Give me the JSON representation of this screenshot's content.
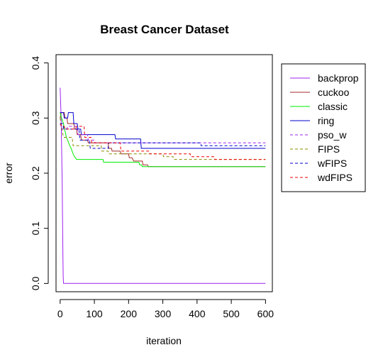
{
  "chart_data": {
    "type": "line",
    "title": "Breast Cancer Dataset",
    "xlabel": "iteration",
    "ylabel": "error",
    "xlim": [
      -12,
      620
    ],
    "ylim": [
      -0.015,
      0.415
    ],
    "xticks": [
      0,
      100,
      200,
      300,
      400,
      500,
      600
    ],
    "yticks": [
      0.0,
      0.1,
      0.2,
      0.3,
      0.4
    ],
    "xtick_labels": [
      "0",
      "100",
      "200",
      "300",
      "400",
      "500",
      "600"
    ],
    "ytick_labels": [
      "0.0",
      "0.1",
      "0.2",
      "0.3",
      "0.4"
    ],
    "legend_position": "right",
    "grid": false,
    "series": [
      {
        "name": "backprop",
        "color": "#a020f0",
        "dash": "solid",
        "points": [
          [
            0,
            0.355
          ],
          [
            3,
            0.3
          ],
          [
            6,
            0.18
          ],
          [
            8,
            0.05
          ],
          [
            9,
            0.012
          ],
          [
            10,
            0.0
          ],
          [
            600,
            0.0
          ]
        ]
      },
      {
        "name": "cuckoo",
        "color": "#a52a2a",
        "dash": "solid",
        "points": [
          [
            0,
            0.3
          ],
          [
            3,
            0.31
          ],
          [
            12,
            0.31
          ],
          [
            14,
            0.3
          ],
          [
            20,
            0.3
          ],
          [
            22,
            0.29
          ],
          [
            40,
            0.29
          ],
          [
            42,
            0.28
          ],
          [
            48,
            0.28
          ],
          [
            50,
            0.27
          ],
          [
            60,
            0.27
          ],
          [
            62,
            0.26
          ],
          [
            80,
            0.26
          ],
          [
            82,
            0.255
          ],
          [
            140,
            0.255
          ],
          [
            142,
            0.245
          ],
          [
            150,
            0.245
          ],
          [
            152,
            0.24
          ],
          [
            175,
            0.24
          ],
          [
            178,
            0.235
          ],
          [
            200,
            0.235
          ],
          [
            202,
            0.228
          ],
          [
            210,
            0.228
          ],
          [
            215,
            0.222
          ],
          [
            240,
            0.222
          ],
          [
            242,
            0.215
          ],
          [
            255,
            0.215
          ],
          [
            258,
            0.212
          ],
          [
            600,
            0.212
          ]
        ]
      },
      {
        "name": "classic",
        "color": "#00ee00",
        "dash": "solid",
        "points": [
          [
            0,
            0.31
          ],
          [
            4,
            0.3
          ],
          [
            10,
            0.29
          ],
          [
            12,
            0.28
          ],
          [
            15,
            0.275
          ],
          [
            18,
            0.265
          ],
          [
            22,
            0.26
          ],
          [
            25,
            0.255
          ],
          [
            28,
            0.25
          ],
          [
            32,
            0.245
          ],
          [
            35,
            0.24
          ],
          [
            38,
            0.235
          ],
          [
            42,
            0.23
          ],
          [
            48,
            0.225
          ],
          [
            125,
            0.225
          ],
          [
            127,
            0.22
          ],
          [
            230,
            0.22
          ],
          [
            232,
            0.215
          ],
          [
            238,
            0.215
          ],
          [
            240,
            0.212
          ],
          [
            600,
            0.212
          ]
        ]
      },
      {
        "name": "ring",
        "color": "#0000cd",
        "dash": "solid",
        "points": [
          [
            0,
            0.31
          ],
          [
            10,
            0.31
          ],
          [
            12,
            0.3
          ],
          [
            22,
            0.3
          ],
          [
            24,
            0.31
          ],
          [
            38,
            0.31
          ],
          [
            40,
            0.29
          ],
          [
            50,
            0.29
          ],
          [
            52,
            0.28
          ],
          [
            60,
            0.28
          ],
          [
            62,
            0.27
          ],
          [
            80,
            0.27
          ],
          [
            82,
            0.27
          ],
          [
            160,
            0.27
          ],
          [
            162,
            0.262
          ],
          [
            235,
            0.262
          ],
          [
            237,
            0.245
          ],
          [
            600,
            0.245
          ]
        ]
      },
      {
        "name": "pso_w",
        "color": "#a020f0",
        "dash": "dashed",
        "points": [
          [
            0,
            0.29
          ],
          [
            6,
            0.28
          ],
          [
            20,
            0.28
          ],
          [
            22,
            0.285
          ],
          [
            50,
            0.285
          ],
          [
            52,
            0.27
          ],
          [
            80,
            0.27
          ],
          [
            82,
            0.26
          ],
          [
            100,
            0.26
          ],
          [
            102,
            0.255
          ],
          [
            600,
            0.255
          ]
        ]
      },
      {
        "name": "FIPS",
        "color": "#8b8b00",
        "dash": "dashed",
        "points": [
          [
            0,
            0.3
          ],
          [
            5,
            0.28
          ],
          [
            8,
            0.27
          ],
          [
            10,
            0.265
          ],
          [
            35,
            0.265
          ],
          [
            38,
            0.25
          ],
          [
            120,
            0.25
          ],
          [
            122,
            0.24
          ],
          [
            140,
            0.24
          ],
          [
            142,
            0.235
          ],
          [
            300,
            0.235
          ],
          [
            302,
            0.23
          ],
          [
            330,
            0.23
          ],
          [
            332,
            0.225
          ],
          [
            600,
            0.225
          ]
        ]
      },
      {
        "name": "wFIPS",
        "color": "#0000cd",
        "dash": "dashed",
        "points": [
          [
            0,
            0.29
          ],
          [
            8,
            0.29
          ],
          [
            10,
            0.28
          ],
          [
            55,
            0.28
          ],
          [
            58,
            0.26
          ],
          [
            85,
            0.26
          ],
          [
            88,
            0.245
          ],
          [
            140,
            0.245
          ],
          [
            142,
            0.255
          ],
          [
            410,
            0.255
          ],
          [
            412,
            0.25
          ],
          [
            600,
            0.25
          ]
        ]
      },
      {
        "name": "wdFIPS",
        "color": "#ee0000",
        "dash": "dashed",
        "points": [
          [
            0,
            0.29
          ],
          [
            5,
            0.285
          ],
          [
            12,
            0.285
          ],
          [
            14,
            0.28
          ],
          [
            45,
            0.28
          ],
          [
            48,
            0.285
          ],
          [
            70,
            0.285
          ],
          [
            72,
            0.265
          ],
          [
            90,
            0.265
          ],
          [
            92,
            0.255
          ],
          [
            175,
            0.255
          ],
          [
            178,
            0.24
          ],
          [
            260,
            0.24
          ],
          [
            262,
            0.235
          ],
          [
            380,
            0.235
          ],
          [
            382,
            0.23
          ],
          [
            450,
            0.23
          ],
          [
            452,
            0.225
          ],
          [
            600,
            0.225
          ]
        ]
      }
    ]
  }
}
